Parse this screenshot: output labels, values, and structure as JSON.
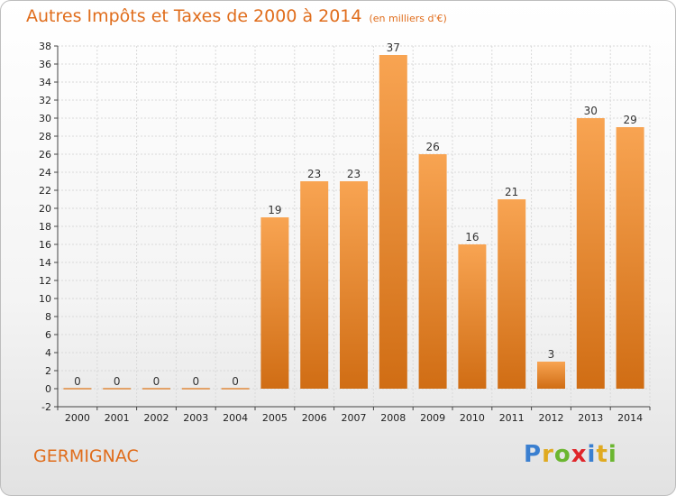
{
  "header": {
    "title": "Autres Impôts et Taxes de 2000 à 2014",
    "subtitle": "(en milliers d'€)"
  },
  "footer": {
    "town": "GERMIGNAC",
    "logo": "Proxiti"
  },
  "chart_data": {
    "type": "bar",
    "title": "Autres Impôts et Taxes de 2000 à 2014",
    "subtitle": "(en milliers d'€)",
    "categories": [
      "2000",
      "2001",
      "2002",
      "2003",
      "2004",
      "2005",
      "2006",
      "2007",
      "2008",
      "2009",
      "2010",
      "2011",
      "2012",
      "2013",
      "2014"
    ],
    "values": [
      0,
      0,
      0,
      0,
      0,
      19,
      23,
      23,
      37,
      26,
      16,
      21,
      3,
      30,
      29
    ],
    "ylim": [
      -2,
      38
    ],
    "yticks": [
      -2,
      0,
      2,
      4,
      6,
      8,
      10,
      12,
      14,
      16,
      18,
      20,
      22,
      24,
      26,
      28,
      30,
      32,
      34,
      36,
      38
    ],
    "grid": true,
    "colors": {
      "bar_light": "#f8a452",
      "bar_dark": "#d06d14",
      "text_accent": "#e06d1c"
    }
  }
}
